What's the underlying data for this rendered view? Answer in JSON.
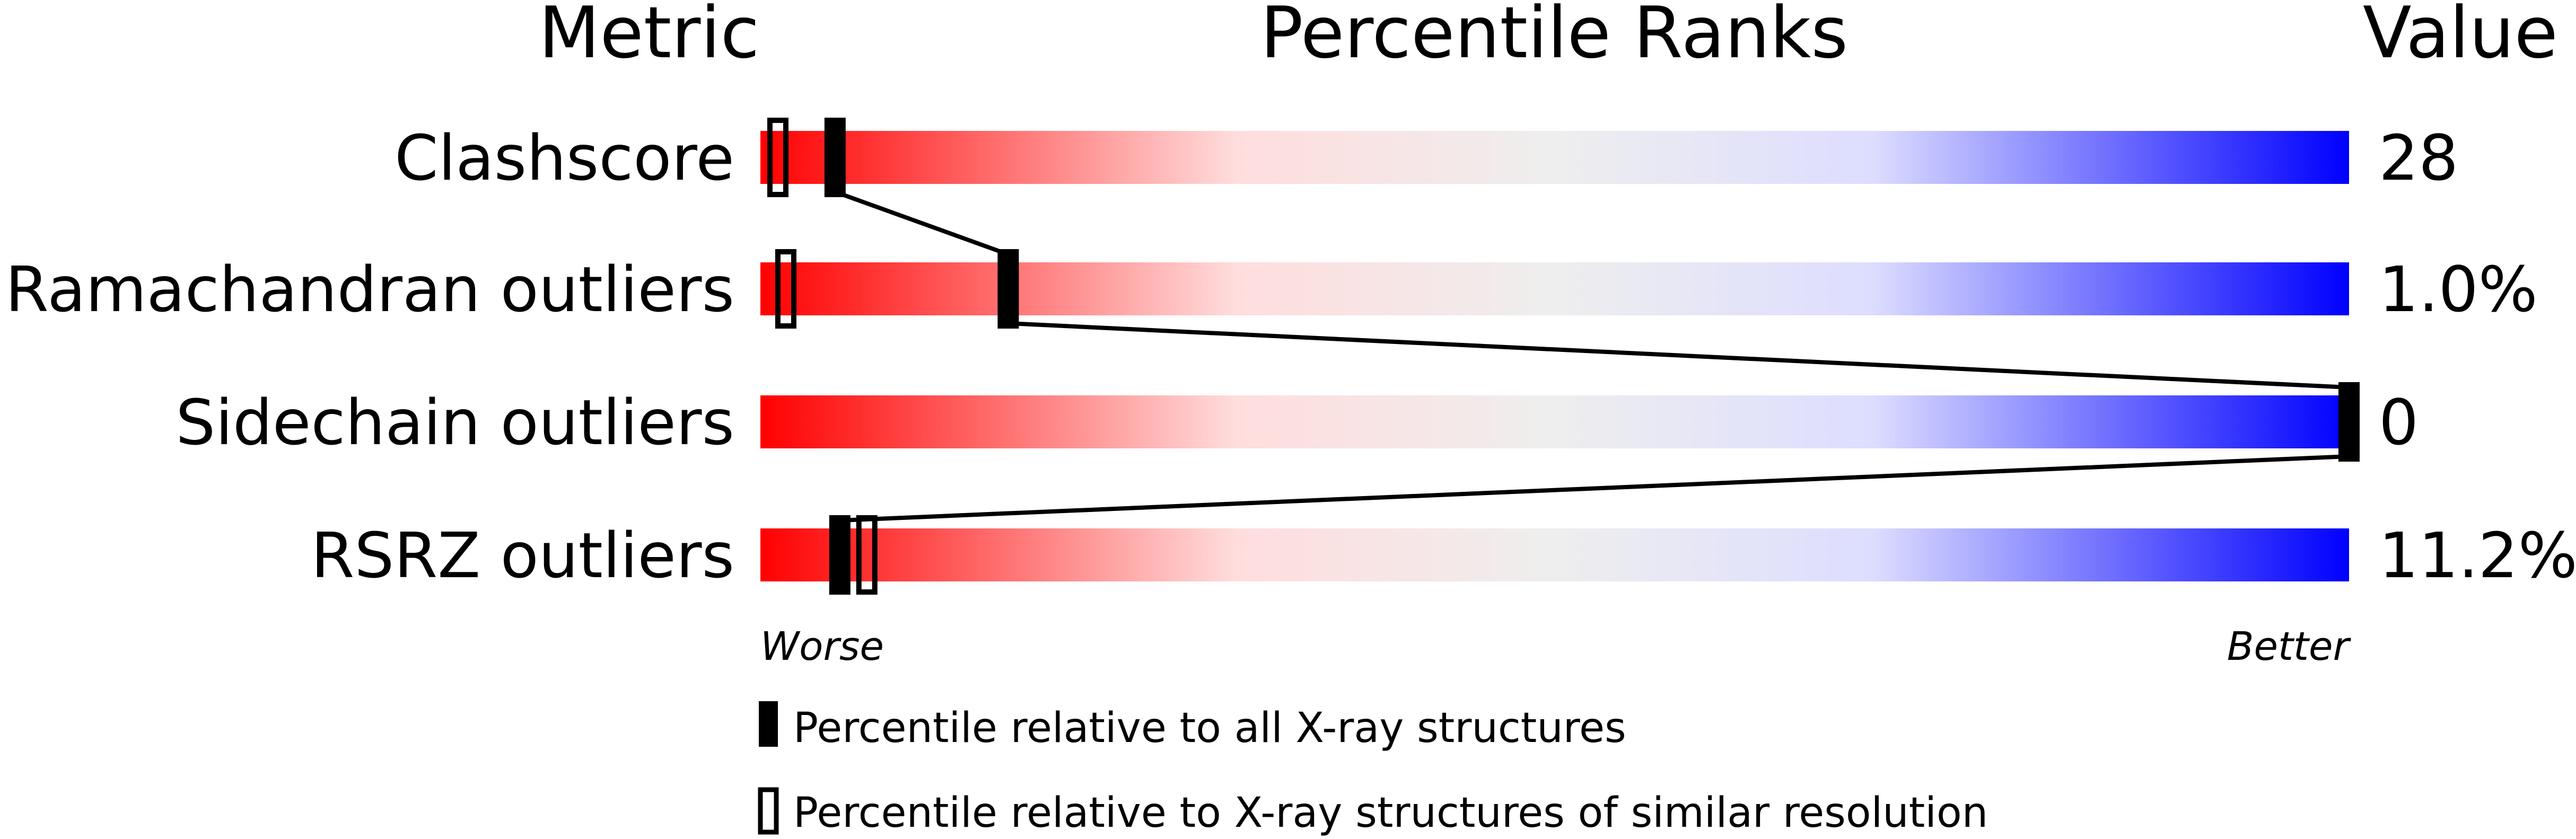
{
  "chart_data": {
    "type": "percentile-slider",
    "headers": {
      "metric": "Metric",
      "ranks": "Percentile Ranks",
      "value": "Value"
    },
    "xlim": [
      0,
      100
    ],
    "axis": {
      "worse": "Worse",
      "better": "Better"
    },
    "gradient_colors": [
      "#ff0000",
      "#ffdddd",
      "#eeeeee",
      "#ddddff",
      "#0000ff"
    ],
    "metrics": [
      {
        "name": "Clashscore",
        "value": "28",
        "percentile_all": 4.7,
        "percentile_similar": 1.1
      },
      {
        "name": "Ramachandran outliers",
        "value": "1.0%",
        "percentile_all": 15.6,
        "percentile_similar": 1.6
      },
      {
        "name": "Sidechain outliers",
        "value": "0",
        "percentile_all": 100,
        "percentile_similar": null
      },
      {
        "name": "RSRZ outliers",
        "value": "11.2%",
        "percentile_all": 5.0,
        "percentile_similar": 6.7
      }
    ],
    "legend": {
      "all": "Percentile relative to all X-ray structures",
      "similar": "Percentile relative to X-ray structures of similar resolution"
    }
  }
}
